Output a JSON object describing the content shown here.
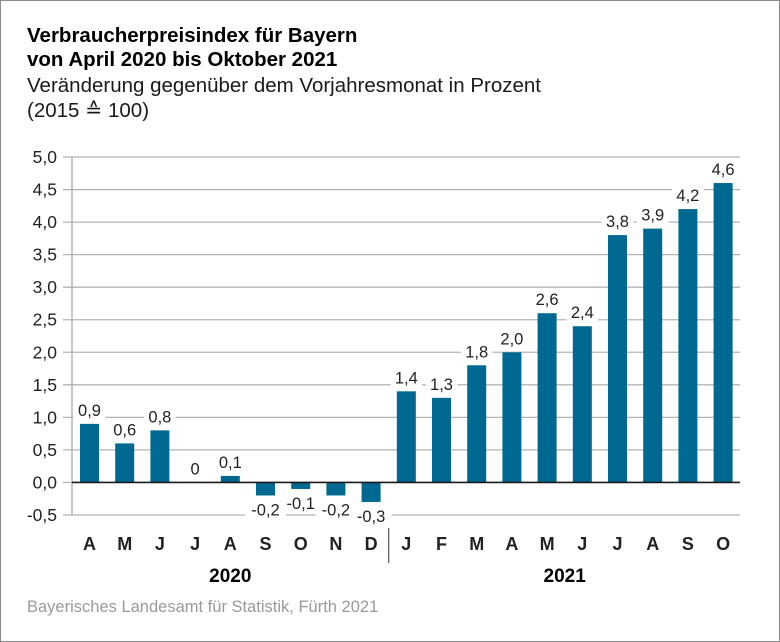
{
  "header": {
    "title_line1": "Verbraucherpreisindex für Bayern",
    "title_line2": "von April 2020 bis Oktober 2021",
    "subtitle_line1": "Veränderung gegenüber dem Vorjahresmonat in Prozent",
    "subtitle_line2": "(2015 ≙ 100)"
  },
  "footer": {
    "source": "Bayerisches Landesamt für Statistik, Fürth 2021"
  },
  "colors": {
    "bar": "#006991",
    "grid": "#b4b4b4",
    "axis": "#1a1a1a",
    "frame": "#8a8a8a"
  },
  "chart_data": {
    "type": "bar",
    "title": "Verbraucherpreisindex für Bayern von April 2020 bis Oktober 2021",
    "subtitle": "Veränderung gegenüber dem Vorjahresmonat in Prozent (2015 ≙ 100)",
    "xlabel": "",
    "ylabel": "",
    "ylim": [
      -0.5,
      5.0
    ],
    "grid": true,
    "legend": "none",
    "y_ticks": [
      -0.5,
      0.0,
      0.5,
      1.0,
      1.5,
      2.0,
      2.5,
      3.0,
      3.5,
      4.0,
      4.5,
      5.0
    ],
    "y_tick_labels": [
      "-0,5",
      "0,0",
      "0,5",
      "1,0",
      "1,5",
      "2,0",
      "2,5",
      "3,0",
      "3,5",
      "4,0",
      "4,5",
      "5,0"
    ],
    "categories": [
      "A",
      "M",
      "J",
      "J",
      "A",
      "S",
      "O",
      "N",
      "D",
      "J",
      "F",
      "M",
      "A",
      "M",
      "J",
      "J",
      "A",
      "S",
      "O"
    ],
    "values": [
      0.9,
      0.6,
      0.8,
      0,
      0.1,
      -0.2,
      -0.1,
      -0.2,
      -0.3,
      1.4,
      1.3,
      1.8,
      2.0,
      2.6,
      2.4,
      3.8,
      3.9,
      4.2,
      4.6
    ],
    "data_labels": [
      "0,9",
      "0,6",
      "0,8",
      "0",
      "0,1",
      "-0,2",
      "-0,1",
      "-0,2",
      "-0,3",
      "1,4",
      "1,3",
      "1,8",
      "2,0",
      "2,6",
      "2,4",
      "3,8",
      "3,9",
      "4,2",
      "4,6"
    ],
    "groups": [
      {
        "label": "2020",
        "count": 9
      },
      {
        "label": "2021",
        "count": 10
      }
    ]
  }
}
